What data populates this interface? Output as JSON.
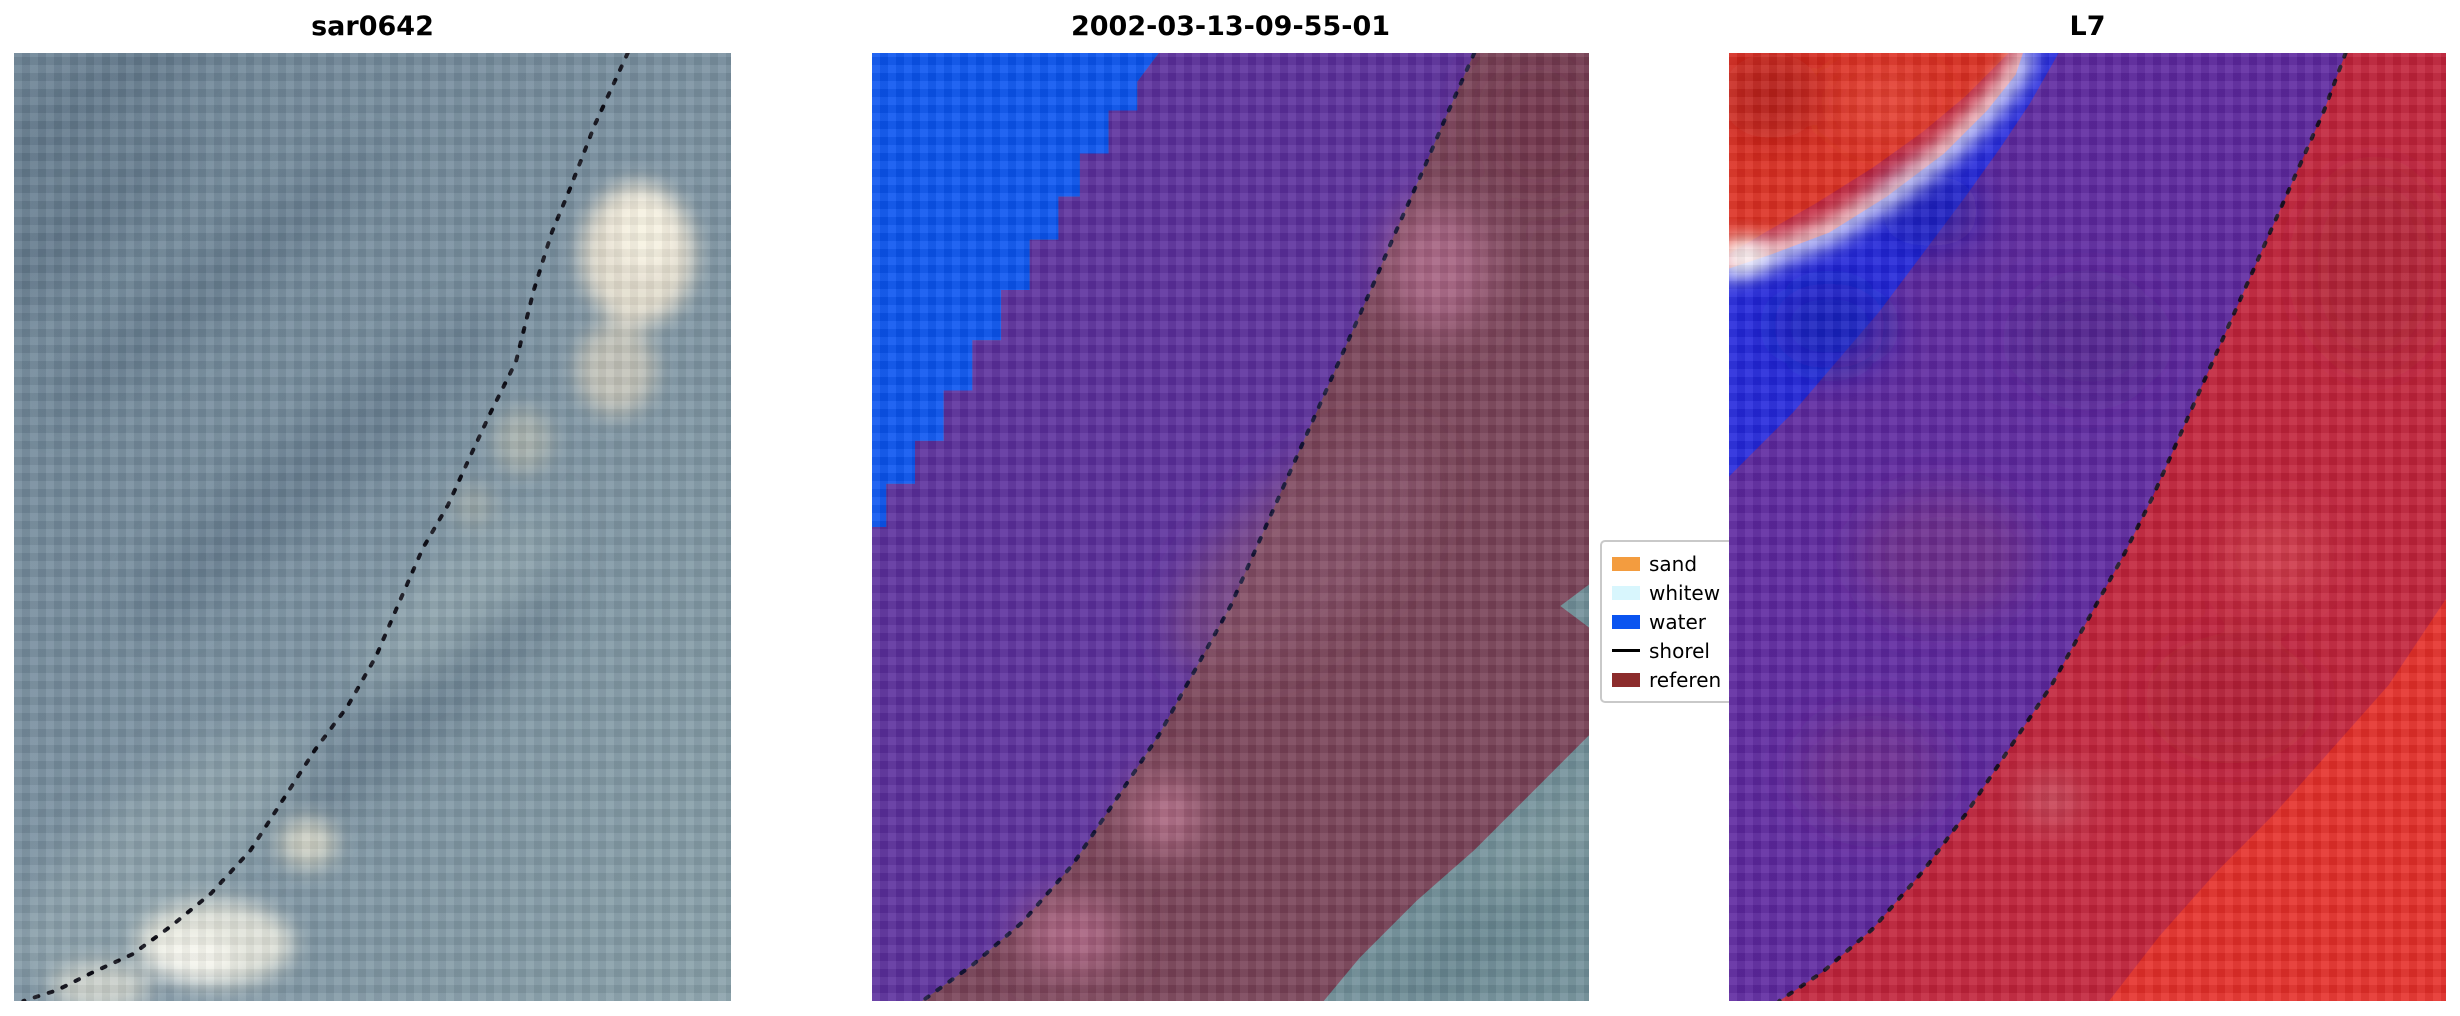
{
  "window": {
    "background": "#ffffff"
  },
  "chart_data": {
    "type": "image",
    "layout": "1x3 satellite image panels with shared dotted shoreline annotation",
    "panels": [
      {
        "title": "sar0642",
        "description": "Blue-gray SAR backscatter image with bright (white) returns upper-right and lower-left; black dotted mapped shoreline running diagonally from top-center to bottom-left."
      },
      {
        "title": "2002-03-13-09-55-01",
        "description": "Pixel classification overlay on SAR background: blue water region top-left, purple classified band through the middle, dark-red reference region right of the dotted shoreline, teal-gray background visible bottom-right."
      },
      {
        "title": "L7",
        "description": "Landsat-7 false-color composite: red patch with white streak top-left, blue region, purple diagonal band, crimson region right of dotted shoreline, brighter red bottom-right."
      }
    ],
    "legend": {
      "position": "center, between second and third panel (partially hidden behind third panel)",
      "entries": [
        {
          "label": "sand",
          "color": "#f39c3f",
          "type": "patch"
        },
        {
          "label": "whitew",
          "color": "#d8f6fd",
          "type": "patch"
        },
        {
          "label": "water",
          "color": "#0a54f0",
          "type": "patch"
        },
        {
          "label": "shorel",
          "color": "#000000",
          "type": "line"
        },
        {
          "label": "referen",
          "color": "#8c2c2c",
          "type": "patch"
        }
      ]
    },
    "shoreline_style": {
      "color": "#000000",
      "linestyle": "dotted"
    },
    "shorelines": [
      [
        [
          85.6,
          0
        ],
        [
          81,
          10
        ],
        [
          77.5,
          19
        ],
        [
          75,
          25
        ],
        [
          72.5,
          33
        ],
        [
          70,
          43
        ],
        [
          66.5,
          50
        ],
        [
          63.7,
          56
        ],
        [
          60.5,
          63
        ],
        [
          57,
          69
        ],
        [
          53.5,
          77
        ],
        [
          50.5,
          84
        ],
        [
          46.5,
          91
        ],
        [
          42,
          97
        ],
        [
          37.5,
          104
        ],
        [
          33,
          111
        ],
        [
          27.5,
          117
        ],
        [
          22,
          121.5
        ],
        [
          16.5,
          125.5
        ],
        [
          11,
          128
        ],
        [
          6,
          130.5
        ],
        [
          1.3,
          132
        ]
      ],
      [
        [
          84,
          0
        ],
        [
          80,
          9
        ],
        [
          77,
          16
        ],
        [
          73,
          25
        ],
        [
          70,
          32
        ],
        [
          66,
          41
        ],
        [
          62,
          50
        ],
        [
          58,
          59
        ],
        [
          54,
          68
        ],
        [
          50,
          77
        ],
        [
          45,
          86
        ],
        [
          40,
          95
        ],
        [
          34,
          104
        ],
        [
          28,
          113
        ],
        [
          21,
          121
        ],
        [
          14,
          127
        ],
        [
          7,
          132
        ]
      ],
      [
        [
          86,
          0
        ],
        [
          83,
          8
        ],
        [
          79,
          17
        ],
        [
          75,
          26
        ],
        [
          71,
          35
        ],
        [
          67,
          44
        ],
        [
          63,
          53
        ],
        [
          59,
          62
        ],
        [
          55,
          70
        ],
        [
          50,
          79
        ],
        [
          45,
          88
        ],
        [
          39,
          97
        ],
        [
          33,
          106
        ],
        [
          27,
          114
        ],
        [
          20,
          122
        ],
        [
          13,
          128
        ],
        [
          7,
          132
        ]
      ]
    ]
  }
}
